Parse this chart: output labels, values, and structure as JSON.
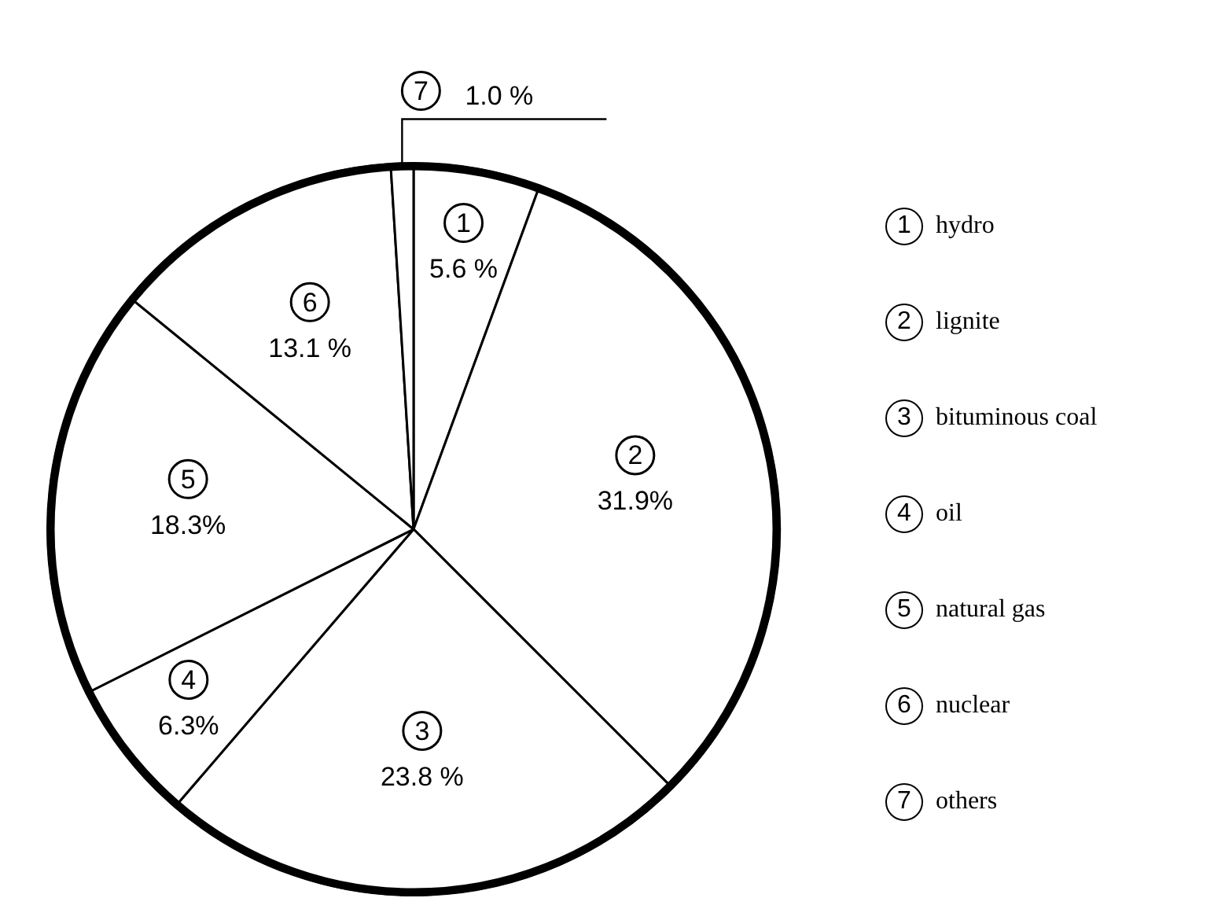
{
  "chart_data": {
    "type": "pie",
    "categories": [
      "hydro",
      "lignite",
      "bituminous coal",
      "oil",
      "natural gas",
      "nuclear",
      "others"
    ],
    "values": [
      5.6,
      31.9,
      23.8,
      6.3,
      18.3,
      13.1,
      1.0
    ],
    "colors": [
      "#ffffff",
      "#ffffff",
      "#ffffff",
      "#ffffff",
      "#ffffff",
      "#ffffff",
      "#ffffff"
    ],
    "value_labels": [
      "5.6 %",
      "31.9%",
      "23.8 %",
      "6.3%",
      "18.3%",
      "13.1 %",
      "1.0 %"
    ],
    "annotations": [
      "1",
      "2",
      "3",
      "4",
      "5",
      "6",
      "7"
    ],
    "legend": "right"
  }
}
